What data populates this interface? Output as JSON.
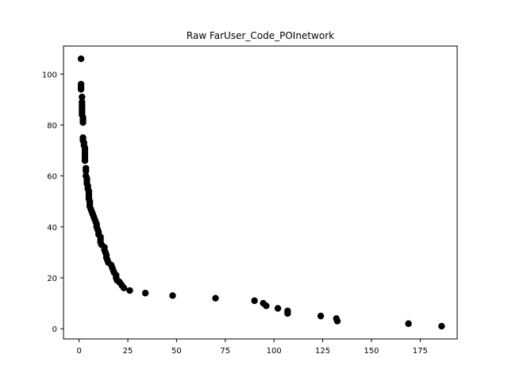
{
  "chart_data": {
    "type": "scatter",
    "title": "Raw FarUser_Code_POInetwork",
    "xlabel": "",
    "ylabel": "",
    "xlim": [
      -8,
      194
    ],
    "ylim": [
      -4,
      111
    ],
    "xticks": [
      0,
      25,
      50,
      75,
      100,
      125,
      150,
      175
    ],
    "yticks": [
      0,
      20,
      40,
      60,
      80,
      100
    ],
    "grid": false,
    "marker_color": "#000000",
    "points": [
      [
        1,
        106
      ],
      [
        1,
        96
      ],
      [
        1,
        95
      ],
      [
        1,
        94
      ],
      [
        1.5,
        91
      ],
      [
        1.5,
        89
      ],
      [
        1.5,
        88
      ],
      [
        1.5,
        87
      ],
      [
        1.5,
        86
      ],
      [
        1.5,
        85
      ],
      [
        1.5,
        84
      ],
      [
        2,
        83
      ],
      [
        2,
        82
      ],
      [
        2,
        81
      ],
      [
        2,
        75
      ],
      [
        2,
        74
      ],
      [
        2.5,
        73
      ],
      [
        2.5,
        72
      ],
      [
        3,
        71
      ],
      [
        3,
        70
      ],
      [
        3,
        69
      ],
      [
        3,
        68
      ],
      [
        3,
        67
      ],
      [
        3,
        66
      ],
      [
        3.5,
        63
      ],
      [
        3.5,
        62
      ],
      [
        3.5,
        60
      ],
      [
        4,
        59
      ],
      [
        4,
        58
      ],
      [
        4,
        57
      ],
      [
        4.5,
        56
      ],
      [
        4.5,
        55
      ],
      [
        5,
        54
      ],
      [
        5,
        53
      ],
      [
        5,
        52
      ],
      [
        5,
        51
      ],
      [
        5.5,
        50
      ],
      [
        5.5,
        49
      ],
      [
        5.5,
        48
      ],
      [
        6,
        47
      ],
      [
        6.5,
        46
      ],
      [
        7,
        45
      ],
      [
        7.5,
        44
      ],
      [
        8,
        43
      ],
      [
        8.5,
        42
      ],
      [
        9,
        41
      ],
      [
        9,
        40
      ],
      [
        9.5,
        39
      ],
      [
        10,
        38
      ],
      [
        10,
        37
      ],
      [
        11,
        36
      ],
      [
        11,
        35
      ],
      [
        11,
        34
      ],
      [
        11.5,
        33
      ],
      [
        13,
        32
      ],
      [
        13,
        31
      ],
      [
        13.5,
        30
      ],
      [
        14,
        29
      ],
      [
        14,
        28
      ],
      [
        14.5,
        27
      ],
      [
        15,
        26
      ],
      [
        16.5,
        25
      ],
      [
        17,
        24
      ],
      [
        17.5,
        23
      ],
      [
        18,
        22
      ],
      [
        19,
        21
      ],
      [
        19,
        20
      ],
      [
        19.5,
        19
      ],
      [
        20.5,
        18.5
      ],
      [
        21,
        18
      ],
      [
        22,
        17
      ],
      [
        23,
        16
      ],
      [
        26,
        15
      ],
      [
        34,
        14
      ],
      [
        48,
        13
      ],
      [
        70,
        12
      ],
      [
        90,
        11
      ],
      [
        94.5,
        10
      ],
      [
        96,
        9
      ],
      [
        102,
        8
      ],
      [
        107,
        7
      ],
      [
        107,
        6
      ],
      [
        124,
        5
      ],
      [
        132,
        4
      ],
      [
        132.5,
        3
      ],
      [
        169,
        2
      ],
      [
        186,
        1
      ]
    ]
  }
}
